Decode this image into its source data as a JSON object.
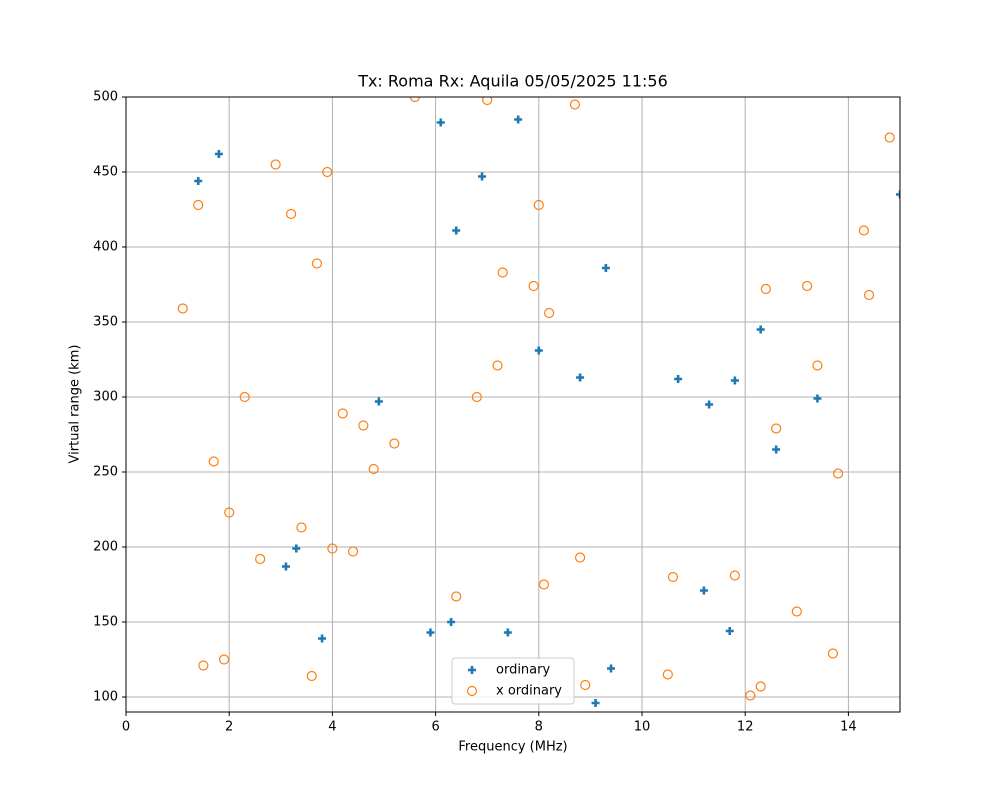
{
  "chart_data": {
    "type": "scatter",
    "title": "Tx: Roma Rx: Aquila 05/05/2025 11:56",
    "x_label": "Frequency (MHz)",
    "y_label": "Virtual range (km)",
    "xlim": [
      0,
      15
    ],
    "ylim": [
      90,
      500
    ],
    "xticks": [
      0,
      2,
      4,
      6,
      8,
      10,
      12,
      14
    ],
    "yticks": [
      100,
      150,
      200,
      250,
      300,
      350,
      400,
      450,
      500
    ],
    "grid": true,
    "legend": "lower center",
    "series": [
      {
        "name": "ordinary",
        "color": "#1f77b4",
        "marker": "plus",
        "x": [
          1.4,
          1.8,
          3.1,
          3.3,
          3.8,
          4.9,
          5.9,
          6.1,
          6.3,
          6.4,
          6.9,
          7.4,
          7.6,
          8.0,
          8.8,
          9.1,
          9.3,
          9.4,
          10.7,
          11.2,
          11.3,
          11.7,
          11.8,
          12.3,
          12.6,
          13.4,
          15.0
        ],
        "values": [
          444,
          462,
          187,
          199,
          139,
          297,
          143,
          483,
          150,
          411,
          447,
          143,
          485,
          331,
          313,
          96,
          386,
          119,
          312,
          171,
          295,
          144,
          311,
          345,
          265,
          299,
          435
        ]
      },
      {
        "name": "x ordinary",
        "color": "#ff7f0e",
        "marker": "circle",
        "x": [
          1.1,
          1.4,
          1.5,
          1.7,
          1.9,
          2.0,
          2.3,
          2.6,
          2.9,
          3.2,
          3.4,
          3.6,
          3.7,
          3.9,
          4.0,
          4.2,
          4.4,
          4.6,
          4.8,
          5.2,
          5.6,
          6.4,
          6.8,
          7.0,
          7.2,
          7.3,
          7.9,
          8.0,
          8.1,
          8.2,
          8.7,
          8.8,
          8.9,
          10.5,
          10.6,
          11.8,
          12.1,
          12.3,
          12.4,
          12.6,
          13.0,
          13.2,
          13.4,
          13.7,
          13.8,
          14.3,
          14.4,
          14.8
        ],
        "values": [
          359,
          428,
          121,
          257,
          125,
          223,
          300,
          192,
          455,
          422,
          213,
          114,
          389,
          450,
          199,
          289,
          197,
          281,
          252,
          269,
          500,
          167,
          300,
          498,
          321,
          383,
          374,
          428,
          175,
          356,
          495,
          193,
          108,
          115,
          180,
          181,
          101,
          107,
          372,
          279,
          157,
          374,
          321,
          129,
          249,
          411,
          368,
          473
        ]
      }
    ]
  }
}
